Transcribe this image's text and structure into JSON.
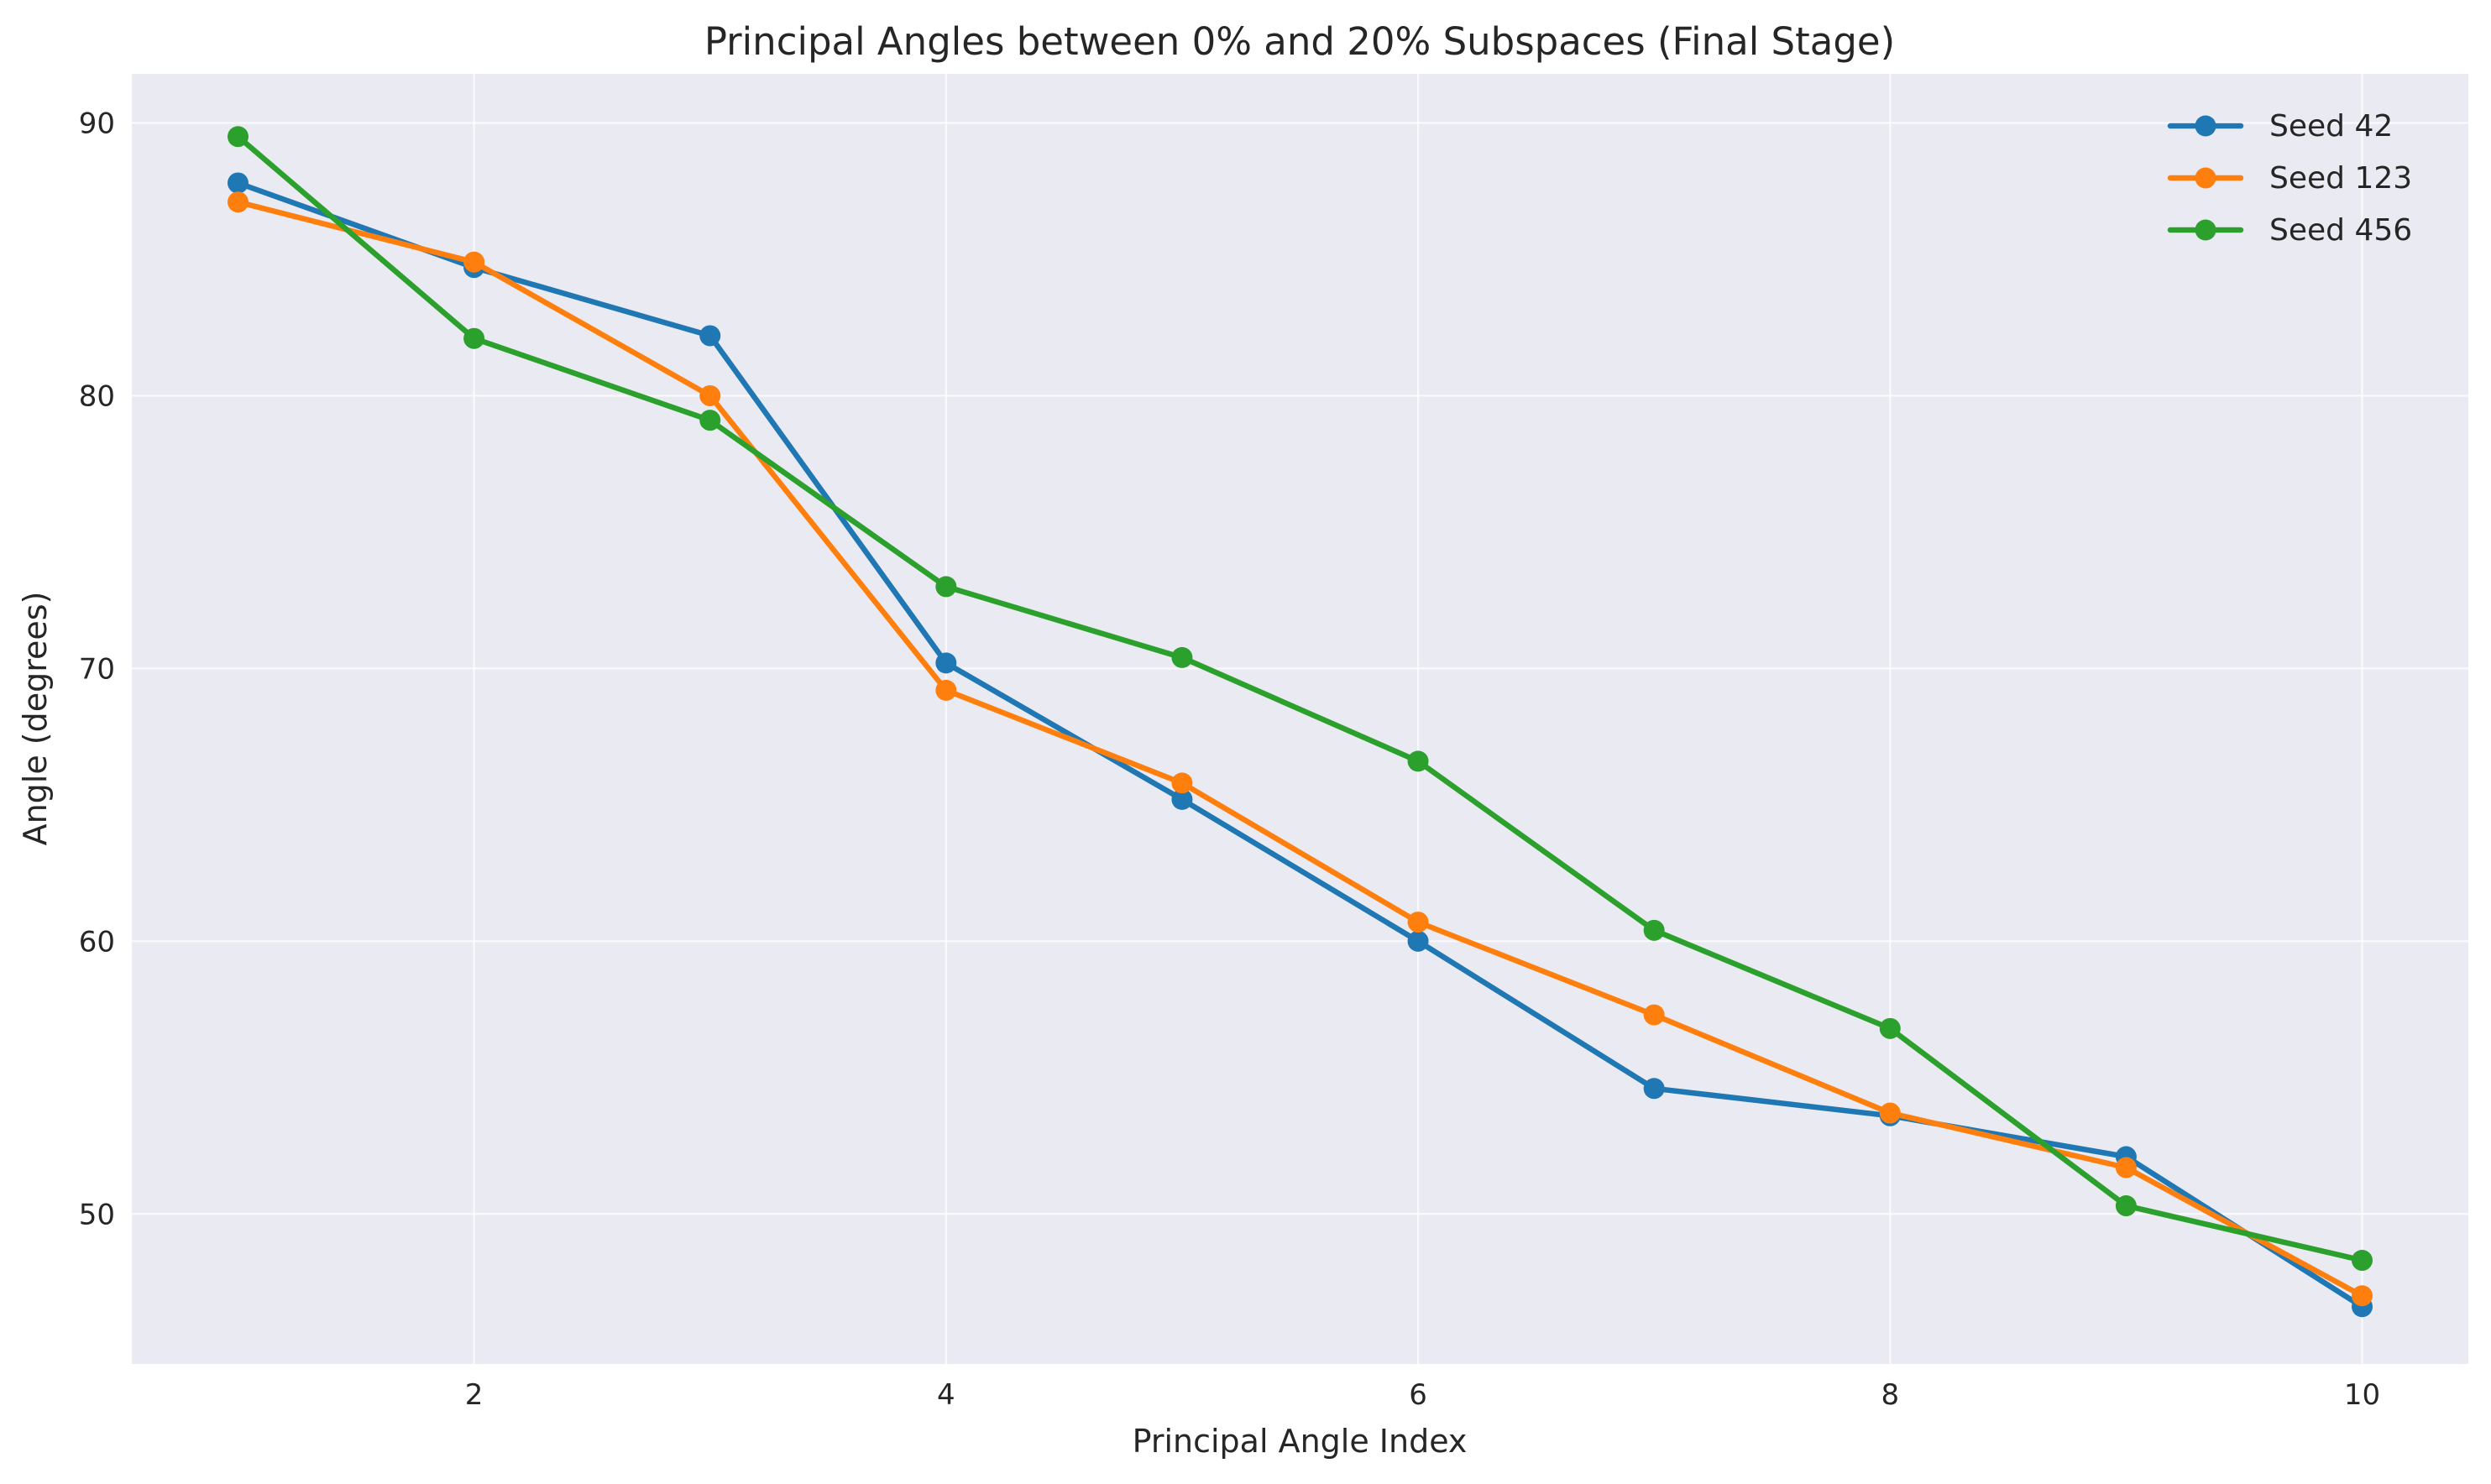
{
  "chart_data": {
    "type": "line",
    "title": "Principal Angles between 0% and 20% Subspaces (Final Stage)",
    "xlabel": "Principal Angle Index",
    "ylabel": "Angle (degrees)",
    "x": [
      1,
      2,
      3,
      4,
      5,
      6,
      7,
      8,
      9,
      10
    ],
    "xlim": [
      0.55,
      10.45
    ],
    "ylim": [
      44.5,
      91.8
    ],
    "xticks": [
      2,
      4,
      6,
      8,
      10
    ],
    "yticks": [
      50,
      60,
      70,
      80,
      90
    ],
    "grid": true,
    "legend_position": "top-right",
    "series": [
      {
        "name": "Seed 42",
        "color": "#1f77b4",
        "values": [
          87.8,
          84.7,
          82.2,
          70.2,
          65.2,
          60.0,
          54.6,
          53.6,
          52.1,
          46.6
        ]
      },
      {
        "name": "Seed 123",
        "color": "#ff7f0e",
        "values": [
          87.1,
          84.9,
          80.0,
          69.2,
          65.8,
          60.7,
          57.3,
          53.7,
          51.7,
          47.0
        ]
      },
      {
        "name": "Seed 456",
        "color": "#2ca02c",
        "values": [
          89.5,
          82.1,
          79.1,
          73.0,
          70.4,
          66.6,
          60.4,
          56.8,
          50.3,
          48.3
        ]
      }
    ]
  }
}
